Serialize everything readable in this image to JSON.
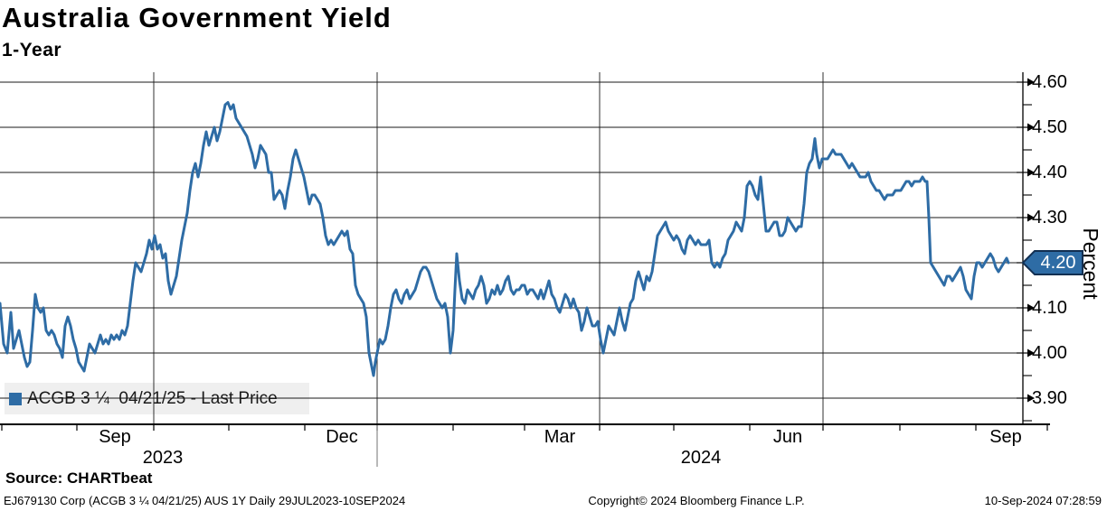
{
  "header": {
    "title": "Australia Government Yield",
    "subtitle": "1-Year"
  },
  "legend": {
    "label": "ACGB 3 ¼  04/21/25 - Last Price"
  },
  "y_axis": {
    "title": "Percent",
    "tick_labels": [
      "4.60",
      "4.50",
      "4.40",
      "4.30",
      "4.20",
      "4.10",
      "4.00",
      "3.90"
    ],
    "last_price_badge": "4.20"
  },
  "x_axis": {
    "month_labels": [
      "Sep",
      "Dec",
      "Mar",
      "Jun",
      "Sep"
    ],
    "year_labels": [
      "2023",
      "2024"
    ]
  },
  "footer": {
    "source": "Source: CHARTbeat",
    "security_info": "EJ679130 Corp (ACGB 3 ¼  04/21/25) AUS 1Y  Daily 29JUL2023-10SEP2024",
    "copyright": "Copyright© 2024 Bloomberg Finance L.P.",
    "timestamp": "10-Sep-2024 07:28:59"
  },
  "colors": {
    "line": "#2e6ca5",
    "badge_fill": "#2e6ca5",
    "badge_border": "#122f52",
    "grid": "#1a1a1a",
    "legend_bg": "#efefef",
    "year_separator": "#8a8a8a"
  },
  "chart_data": {
    "type": "line",
    "title": "Australia Government Yield",
    "subtitle": "1-Year",
    "series_name": "ACGB 3 ¼ 04/21/25 - Last Price",
    "ylabel": "Percent",
    "ylim": [
      3.9,
      4.6
    ],
    "y_tick_step": 0.1,
    "date_range": "29JUL2023-10SEP2024",
    "last_price": 4.2,
    "grid": "on",
    "legend_position": "bottom-left",
    "x_unit": "px from left edge; timeline 29JUL2023 (x=0) to 10SEP2024 (x=1115), vertical gridlines at quarter starts",
    "points": [
      [
        0,
        4.11
      ],
      [
        4,
        4.02
      ],
      [
        8,
        4.0
      ],
      [
        12,
        4.09
      ],
      [
        15,
        4.01
      ],
      [
        18,
        4.03
      ],
      [
        21,
        4.05
      ],
      [
        24,
        4.02
      ],
      [
        27,
        3.99
      ],
      [
        30,
        3.97
      ],
      [
        33,
        3.98
      ],
      [
        36,
        4.05
      ],
      [
        39,
        4.13
      ],
      [
        42,
        4.1
      ],
      [
        45,
        4.09
      ],
      [
        48,
        4.1
      ],
      [
        51,
        4.05
      ],
      [
        54,
        4.04
      ],
      [
        57,
        4.05
      ],
      [
        60,
        4.04
      ],
      [
        63,
        4.02
      ],
      [
        66,
        4.01
      ],
      [
        69,
        3.99
      ],
      [
        72,
        4.06
      ],
      [
        75,
        4.08
      ],
      [
        78,
        4.06
      ],
      [
        81,
        4.03
      ],
      [
        84,
        4.01
      ],
      [
        87,
        3.98
      ],
      [
        90,
        3.97
      ],
      [
        93,
        3.96
      ],
      [
        96,
        3.99
      ],
      [
        99,
        4.02
      ],
      [
        102,
        4.01
      ],
      [
        105,
        4.0
      ],
      [
        108,
        4.02
      ],
      [
        111,
        4.04
      ],
      [
        114,
        4.02
      ],
      [
        117,
        4.03
      ],
      [
        120,
        4.02
      ],
      [
        123,
        4.04
      ],
      [
        126,
        4.03
      ],
      [
        129,
        4.04
      ],
      [
        132,
        4.03
      ],
      [
        135,
        4.05
      ],
      [
        138,
        4.04
      ],
      [
        141,
        4.06
      ],
      [
        144,
        4.11
      ],
      [
        147,
        4.16
      ],
      [
        150,
        4.2
      ],
      [
        153,
        4.19
      ],
      [
        156,
        4.18
      ],
      [
        159,
        4.2
      ],
      [
        162,
        4.22
      ],
      [
        165,
        4.25
      ],
      [
        168,
        4.23
      ],
      [
        171,
        4.26
      ],
      [
        174,
        4.23
      ],
      [
        177,
        4.24
      ],
      [
        180,
        4.21
      ],
      [
        183,
        4.22
      ],
      [
        186,
        4.16
      ],
      [
        189,
        4.13
      ],
      [
        192,
        4.15
      ],
      [
        195,
        4.17
      ],
      [
        198,
        4.21
      ],
      [
        201,
        4.25
      ],
      [
        204,
        4.28
      ],
      [
        207,
        4.31
      ],
      [
        210,
        4.36
      ],
      [
        213,
        4.4
      ],
      [
        216,
        4.42
      ],
      [
        219,
        4.39
      ],
      [
        222,
        4.42
      ],
      [
        225,
        4.46
      ],
      [
        228,
        4.49
      ],
      [
        231,
        4.46
      ],
      [
        234,
        4.48
      ],
      [
        237,
        4.5
      ],
      [
        240,
        4.47
      ],
      [
        243,
        4.49
      ],
      [
        246,
        4.52
      ],
      [
        249,
        4.55
      ],
      [
        252,
        4.555
      ],
      [
        255,
        4.54
      ],
      [
        258,
        4.55
      ],
      [
        261,
        4.52
      ],
      [
        264,
        4.51
      ],
      [
        267,
        4.5
      ],
      [
        270,
        4.49
      ],
      [
        273,
        4.48
      ],
      [
        276,
        4.46
      ],
      [
        279,
        4.44
      ],
      [
        282,
        4.41
      ],
      [
        285,
        4.43
      ],
      [
        288,
        4.46
      ],
      [
        291,
        4.45
      ],
      [
        294,
        4.44
      ],
      [
        297,
        4.4
      ],
      [
        300,
        4.4
      ],
      [
        303,
        4.34
      ],
      [
        306,
        4.35
      ],
      [
        309,
        4.36
      ],
      [
        312,
        4.35
      ],
      [
        315,
        4.32
      ],
      [
        318,
        4.36
      ],
      [
        321,
        4.39
      ],
      [
        324,
        4.43
      ],
      [
        327,
        4.45
      ],
      [
        330,
        4.43
      ],
      [
        333,
        4.41
      ],
      [
        336,
        4.39
      ],
      [
        339,
        4.36
      ],
      [
        342,
        4.33
      ],
      [
        345,
        4.35
      ],
      [
        348,
        4.35
      ],
      [
        351,
        4.34
      ],
      [
        354,
        4.33
      ],
      [
        357,
        4.3
      ],
      [
        360,
        4.26
      ],
      [
        363,
        4.24
      ],
      [
        366,
        4.25
      ],
      [
        369,
        4.24
      ],
      [
        372,
        4.25
      ],
      [
        375,
        4.26
      ],
      [
        378,
        4.27
      ],
      [
        381,
        4.26
      ],
      [
        384,
        4.27
      ],
      [
        387,
        4.23
      ],
      [
        390,
        4.22
      ],
      [
        393,
        4.15
      ],
      [
        396,
        4.13
      ],
      [
        399,
        4.12
      ],
      [
        402,
        4.11
      ],
      [
        405,
        4.08
      ],
      [
        408,
        4.0
      ],
      [
        411,
        3.97
      ],
      [
        413,
        3.95
      ],
      [
        415,
        3.98
      ],
      [
        417,
        4.0
      ],
      [
        420,
        4.03
      ],
      [
        423,
        4.02
      ],
      [
        426,
        4.03
      ],
      [
        429,
        4.06
      ],
      [
        432,
        4.1
      ],
      [
        435,
        4.13
      ],
      [
        438,
        4.14
      ],
      [
        441,
        4.12
      ],
      [
        444,
        4.11
      ],
      [
        447,
        4.13
      ],
      [
        450,
        4.14
      ],
      [
        453,
        4.12
      ],
      [
        456,
        4.13
      ],
      [
        459,
        4.14
      ],
      [
        462,
        4.16
      ],
      [
        465,
        4.18
      ],
      [
        468,
        4.19
      ],
      [
        471,
        4.19
      ],
      [
        474,
        4.18
      ],
      [
        477,
        4.16
      ],
      [
        480,
        4.14
      ],
      [
        483,
        4.12
      ],
      [
        486,
        4.11
      ],
      [
        489,
        4.1
      ],
      [
        492,
        4.11
      ],
      [
        495,
        4.08
      ],
      [
        498,
        4.0
      ],
      [
        501,
        4.05
      ],
      [
        503,
        4.14
      ],
      [
        505,
        4.22
      ],
      [
        508,
        4.16
      ],
      [
        511,
        4.12
      ],
      [
        514,
        4.11
      ],
      [
        517,
        4.14
      ],
      [
        520,
        4.13
      ],
      [
        523,
        4.12
      ],
      [
        526,
        4.14
      ],
      [
        529,
        4.15
      ],
      [
        532,
        4.17
      ],
      [
        535,
        4.15
      ],
      [
        538,
        4.11
      ],
      [
        541,
        4.12
      ],
      [
        544,
        4.14
      ],
      [
        547,
        4.13
      ],
      [
        550,
        4.15
      ],
      [
        553,
        4.13
      ],
      [
        556,
        4.14
      ],
      [
        559,
        4.16
      ],
      [
        562,
        4.17
      ],
      [
        565,
        4.14
      ],
      [
        568,
        4.13
      ],
      [
        571,
        4.14
      ],
      [
        574,
        4.14
      ],
      [
        577,
        4.15
      ],
      [
        580,
        4.15
      ],
      [
        583,
        4.13
      ],
      [
        586,
        4.14
      ],
      [
        589,
        4.14
      ],
      [
        592,
        4.13
      ],
      [
        595,
        4.12
      ],
      [
        598,
        4.14
      ],
      [
        601,
        4.12
      ],
      [
        604,
        4.14
      ],
      [
        607,
        4.16
      ],
      [
        610,
        4.13
      ],
      [
        613,
        4.12
      ],
      [
        616,
        4.1
      ],
      [
        619,
        4.09
      ],
      [
        622,
        4.11
      ],
      [
        625,
        4.13
      ],
      [
        628,
        4.12
      ],
      [
        631,
        4.1
      ],
      [
        634,
        4.12
      ],
      [
        637,
        4.1
      ],
      [
        640,
        4.09
      ],
      [
        643,
        4.05
      ],
      [
        646,
        4.07
      ],
      [
        649,
        4.1
      ],
      [
        652,
        4.08
      ],
      [
        655,
        4.06
      ],
      [
        658,
        4.06
      ],
      [
        661,
        4.07
      ],
      [
        664,
        4.03
      ],
      [
        667,
        4.0
      ],
      [
        670,
        4.03
      ],
      [
        673,
        4.06
      ],
      [
        676,
        4.05
      ],
      [
        679,
        4.04
      ],
      [
        682,
        4.07
      ],
      [
        685,
        4.1
      ],
      [
        688,
        4.07
      ],
      [
        691,
        4.05
      ],
      [
        694,
        4.08
      ],
      [
        697,
        4.11
      ],
      [
        700,
        4.12
      ],
      [
        703,
        4.16
      ],
      [
        706,
        4.18
      ],
      [
        709,
        4.16
      ],
      [
        712,
        4.14
      ],
      [
        715,
        4.17
      ],
      [
        718,
        4.16
      ],
      [
        721,
        4.18
      ],
      [
        724,
        4.22
      ],
      [
        727,
        4.26
      ],
      [
        730,
        4.27
      ],
      [
        733,
        4.28
      ],
      [
        736,
        4.29
      ],
      [
        739,
        4.27
      ],
      [
        742,
        4.26
      ],
      [
        745,
        4.25
      ],
      [
        748,
        4.26
      ],
      [
        751,
        4.25
      ],
      [
        754,
        4.23
      ],
      [
        757,
        4.22
      ],
      [
        760,
        4.25
      ],
      [
        763,
        4.26
      ],
      [
        766,
        4.25
      ],
      [
        769,
        4.24
      ],
      [
        772,
        4.25
      ],
      [
        775,
        4.24
      ],
      [
        778,
        4.24
      ],
      [
        781,
        4.24
      ],
      [
        784,
        4.25
      ],
      [
        787,
        4.2
      ],
      [
        790,
        4.19
      ],
      [
        793,
        4.2
      ],
      [
        796,
        4.19
      ],
      [
        799,
        4.21
      ],
      [
        802,
        4.22
      ],
      [
        805,
        4.25
      ],
      [
        808,
        4.26
      ],
      [
        811,
        4.27
      ],
      [
        814,
        4.29
      ],
      [
        817,
        4.28
      ],
      [
        820,
        4.27
      ],
      [
        823,
        4.3
      ],
      [
        826,
        4.37
      ],
      [
        829,
        4.38
      ],
      [
        832,
        4.37
      ],
      [
        835,
        4.35
      ],
      [
        838,
        4.34
      ],
      [
        841,
        4.39
      ],
      [
        844,
        4.33
      ],
      [
        847,
        4.27
      ],
      [
        850,
        4.27
      ],
      [
        853,
        4.28
      ],
      [
        856,
        4.29
      ],
      [
        859,
        4.29
      ],
      [
        862,
        4.26
      ],
      [
        865,
        4.26
      ],
      [
        868,
        4.27
      ],
      [
        871,
        4.3
      ],
      [
        874,
        4.29
      ],
      [
        877,
        4.28
      ],
      [
        880,
        4.27
      ],
      [
        883,
        4.28
      ],
      [
        886,
        4.28
      ],
      [
        889,
        4.33
      ],
      [
        892,
        4.4
      ],
      [
        895,
        4.42
      ],
      [
        898,
        4.43
      ],
      [
        901,
        4.475
      ],
      [
        903,
        4.44
      ],
      [
        906,
        4.41
      ],
      [
        909,
        4.43
      ],
      [
        912,
        4.43
      ],
      [
        915,
        4.43
      ],
      [
        918,
        4.44
      ],
      [
        921,
        4.45
      ],
      [
        924,
        4.44
      ],
      [
        927,
        4.44
      ],
      [
        930,
        4.44
      ],
      [
        933,
        4.43
      ],
      [
        936,
        4.42
      ],
      [
        939,
        4.41
      ],
      [
        942,
        4.42
      ],
      [
        945,
        4.41
      ],
      [
        948,
        4.4
      ],
      [
        951,
        4.39
      ],
      [
        954,
        4.39
      ],
      [
        957,
        4.39
      ],
      [
        960,
        4.4
      ],
      [
        963,
        4.38
      ],
      [
        966,
        4.37
      ],
      [
        969,
        4.36
      ],
      [
        972,
        4.36
      ],
      [
        975,
        4.35
      ],
      [
        978,
        4.34
      ],
      [
        981,
        4.35
      ],
      [
        984,
        4.35
      ],
      [
        987,
        4.35
      ],
      [
        990,
        4.36
      ],
      [
        993,
        4.36
      ],
      [
        996,
        4.36
      ],
      [
        999,
        4.37
      ],
      [
        1002,
        4.38
      ],
      [
        1005,
        4.38
      ],
      [
        1008,
        4.37
      ],
      [
        1011,
        4.38
      ],
      [
        1014,
        4.38
      ],
      [
        1017,
        4.38
      ],
      [
        1020,
        4.39
      ],
      [
        1023,
        4.38
      ],
      [
        1025,
        4.38
      ],
      [
        1027,
        4.3
      ],
      [
        1029,
        4.2
      ],
      [
        1032,
        4.19
      ],
      [
        1035,
        4.18
      ],
      [
        1038,
        4.17
      ],
      [
        1041,
        4.16
      ],
      [
        1044,
        4.15
      ],
      [
        1047,
        4.17
      ],
      [
        1050,
        4.17
      ],
      [
        1053,
        4.16
      ],
      [
        1056,
        4.17
      ],
      [
        1059,
        4.18
      ],
      [
        1062,
        4.19
      ],
      [
        1065,
        4.17
      ],
      [
        1068,
        4.14
      ],
      [
        1071,
        4.13
      ],
      [
        1074,
        4.12
      ],
      [
        1077,
        4.17
      ],
      [
        1080,
        4.2
      ],
      [
        1083,
        4.2
      ],
      [
        1086,
        4.19
      ],
      [
        1089,
        4.2
      ],
      [
        1092,
        4.21
      ],
      [
        1095,
        4.22
      ],
      [
        1098,
        4.21
      ],
      [
        1101,
        4.19
      ],
      [
        1104,
        4.18
      ],
      [
        1107,
        4.19
      ],
      [
        1110,
        4.2
      ],
      [
        1113,
        4.21
      ],
      [
        1115,
        4.2
      ]
    ]
  }
}
